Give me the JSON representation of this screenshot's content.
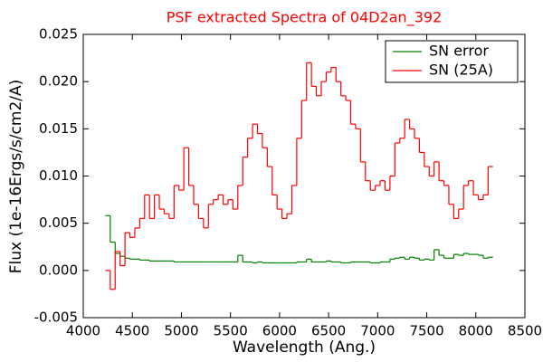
{
  "chart_data": {
    "type": "line",
    "title": "PSF extracted Spectra of 04D2an_392",
    "xlabel": "Wavelength (Ang.)",
    "ylabel": "Flux (1e-16Ergs/s/cm2/A)",
    "x": [
      4250,
      4300,
      4350,
      4400,
      4450,
      4500,
      4550,
      4600,
      4650,
      4700,
      4750,
      4800,
      4850,
      4900,
      4950,
      5000,
      5050,
      5100,
      5150,
      5200,
      5250,
      5300,
      5350,
      5400,
      5450,
      5500,
      5550,
      5600,
      5650,
      5700,
      5750,
      5800,
      5850,
      5900,
      5950,
      6000,
      6050,
      6100,
      6150,
      6200,
      6250,
      6300,
      6350,
      6400,
      6450,
      6500,
      6550,
      6600,
      6650,
      6700,
      6750,
      6800,
      6850,
      6900,
      6950,
      7000,
      7050,
      7100,
      7150,
      7200,
      7250,
      7300,
      7350,
      7400,
      7450,
      7500,
      7550,
      7600,
      7650,
      7700,
      7750,
      7800,
      7850,
      7900,
      7950,
      8000,
      8050,
      8100,
      8150
    ],
    "series": [
      {
        "name": "SN error",
        "color": "#008000",
        "values": [
          0.0058,
          0.003,
          0.0018,
          0.0015,
          0.0013,
          0.0012,
          0.0012,
          0.0011,
          0.0011,
          0.001,
          0.001,
          0.001,
          0.001,
          0.001,
          0.0009,
          0.0009,
          0.0009,
          0.0009,
          0.0009,
          0.0009,
          0.0009,
          0.0009,
          0.0009,
          0.0009,
          0.0009,
          0.0009,
          0.0009,
          0.0016,
          0.0009,
          0.0009,
          0.0008,
          0.0009,
          0.0008,
          0.0008,
          0.0008,
          0.0008,
          0.0008,
          0.0008,
          0.0008,
          0.0009,
          0.0009,
          0.0012,
          0.0009,
          0.0009,
          0.0009,
          0.001,
          0.0009,
          0.0009,
          0.0008,
          0.0008,
          0.0009,
          0.0009,
          0.0009,
          0.0009,
          0.0008,
          0.0008,
          0.0009,
          0.0009,
          0.0012,
          0.0013,
          0.0014,
          0.0012,
          0.0014,
          0.0013,
          0.0011,
          0.0012,
          0.0011,
          0.0022,
          0.0016,
          0.0013,
          0.0013,
          0.0017,
          0.0016,
          0.0018,
          0.0017,
          0.0017,
          0.0016,
          0.0013,
          0.0014
        ]
      },
      {
        "name": "SN (25A)",
        "color": "#ff0000",
        "values": [
          0.0,
          -0.002,
          0.002,
          0.0005,
          0.004,
          0.0035,
          0.0045,
          0.0055,
          0.008,
          0.0055,
          0.008,
          0.0065,
          0.006,
          0.0055,
          0.009,
          0.0085,
          0.013,
          0.009,
          0.007,
          0.0055,
          0.0045,
          0.007,
          0.0075,
          0.008,
          0.007,
          0.0075,
          0.0065,
          0.009,
          0.012,
          0.014,
          0.0155,
          0.0145,
          0.013,
          0.011,
          0.008,
          0.0065,
          0.0055,
          0.006,
          0.009,
          0.014,
          0.018,
          0.022,
          0.0195,
          0.0185,
          0.02,
          0.021,
          0.0215,
          0.02,
          0.0185,
          0.018,
          0.0155,
          0.015,
          0.0115,
          0.0095,
          0.0085,
          0.009,
          0.0095,
          0.0085,
          0.01,
          0.0135,
          0.014,
          0.016,
          0.015,
          0.014,
          0.0125,
          0.011,
          0.01,
          0.0115,
          0.0095,
          0.009,
          0.007,
          0.0055,
          0.0065,
          0.009,
          0.0095,
          0.008,
          0.0075,
          0.008,
          0.011
        ]
      }
    ],
    "xlim": [
      4000,
      8500
    ],
    "xticks": [
      4000,
      4500,
      5000,
      5500,
      6000,
      6500,
      7000,
      7500,
      8000,
      8500
    ],
    "ylim": [
      -0.005,
      0.025
    ],
    "yticks": [
      {
        "value": -0.005,
        "label": "-0.005"
      },
      {
        "value": 0,
        "label": "0.000"
      },
      {
        "value": 0.005,
        "label": "0.005"
      },
      {
        "value": 0.01,
        "label": "0.010"
      },
      {
        "value": 0.015,
        "label": "0.015"
      },
      {
        "value": 0.02,
        "label": "0.020"
      },
      {
        "value": 0.025,
        "label": "0.025"
      }
    ],
    "legend": "upper right",
    "grid": false
  }
}
